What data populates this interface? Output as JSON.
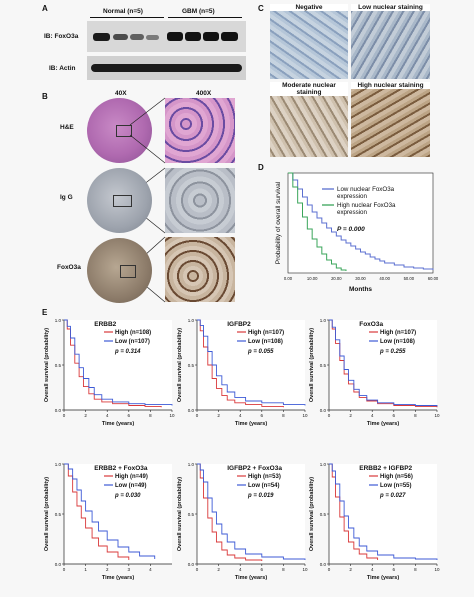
{
  "panels": {
    "a": "A",
    "b": "B",
    "c": "C",
    "d": "D",
    "e": "E"
  },
  "panel_a": {
    "group_normal": "Normal (n=5)",
    "group_gbm": "GBM (n=5)",
    "row1_label": "IB: FoxO3a",
    "row2_label": "IB: Actin"
  },
  "panel_b": {
    "col_40x": "40X",
    "col_400x": "400X",
    "rows": [
      "H&E",
      "Ig G",
      "FoxO3a"
    ]
  },
  "panel_c": {
    "tiles": [
      "Negative",
      "Low nuclear staining",
      "Moderate nuclear staining",
      "High nuclear staining"
    ]
  },
  "chart_data": [
    {
      "id": "D",
      "type": "line",
      "title": "",
      "xlabel": "Months",
      "ylabel": "Probability of overall survival",
      "xlim": [
        0,
        60
      ],
      "ylim": [
        0,
        1
      ],
      "xticks": [
        "0.00",
        "10.00",
        "20.00",
        "30.00",
        "40.00",
        "50.00",
        "60.00"
      ],
      "series": [
        {
          "name": "Low nuclear FoxO3a expression",
          "color": "#5b6fd0",
          "x": [
            0,
            2,
            4,
            6,
            8,
            10,
            12,
            14,
            16,
            18,
            20,
            22,
            24,
            26,
            28,
            30,
            32,
            34,
            36,
            38,
            40,
            44,
            48,
            52,
            56,
            60
          ],
          "y": [
            1,
            0.93,
            0.84,
            0.76,
            0.68,
            0.61,
            0.55,
            0.5,
            0.45,
            0.41,
            0.37,
            0.33,
            0.3,
            0.27,
            0.24,
            0.21,
            0.19,
            0.16,
            0.14,
            0.12,
            0.1,
            0.08,
            0.06,
            0.05,
            0.04,
            0.03
          ]
        },
        {
          "name": "High nuclear FoxO3a expression",
          "color": "#3aa55a",
          "x": [
            0,
            2,
            4,
            6,
            8,
            10,
            12,
            14,
            16,
            18,
            20,
            22,
            24
          ],
          "y": [
            1,
            0.86,
            0.7,
            0.56,
            0.44,
            0.34,
            0.26,
            0.19,
            0.13,
            0.09,
            0.05,
            0.03,
            0.02
          ]
        }
      ],
      "annotation": "P = 0.000"
    },
    {
      "id": "E1",
      "type": "line",
      "title": "ERBB2",
      "xlabel": "Time (years)",
      "ylabel": "Overall survival (probability)",
      "xlim": [
        0,
        10
      ],
      "ylim": [
        0,
        1
      ],
      "xticks": [
        "0",
        "2",
        "4",
        "6",
        "8",
        "10"
      ],
      "yticks": [
        "0.0",
        "0.5",
        "1.0"
      ],
      "series": [
        {
          "name": "High (n=108)",
          "color": "#d9383a",
          "x": [
            0,
            0.3,
            0.6,
            1,
            1.4,
            1.8,
            2.3,
            2.8,
            3.5,
            4.5,
            6,
            7.5,
            9
          ],
          "y": [
            1,
            0.9,
            0.72,
            0.52,
            0.37,
            0.26,
            0.18,
            0.12,
            0.09,
            0.07,
            0.05,
            0.04,
            0.03
          ]
        },
        {
          "name": "Low (n=107)",
          "color": "#3d5ad6",
          "x": [
            0,
            0.3,
            0.6,
            1,
            1.4,
            1.8,
            2.3,
            2.8,
            3.5,
            4.5,
            6,
            7.5,
            10
          ],
          "y": [
            1,
            0.93,
            0.8,
            0.62,
            0.47,
            0.35,
            0.25,
            0.17,
            0.12,
            0.09,
            0.07,
            0.06,
            0.05
          ]
        }
      ],
      "annotation": "p = 0.314"
    },
    {
      "id": "E2",
      "type": "line",
      "title": "IGFBP2",
      "xlabel": "Time (years)",
      "ylabel": "Overall survival (probability)",
      "xlim": [
        0,
        10
      ],
      "ylim": [
        0,
        1
      ],
      "xticks": [
        "0",
        "2",
        "4",
        "6",
        "8",
        "10"
      ],
      "yticks": [
        "0.0",
        "0.5",
        "1.0"
      ],
      "series": [
        {
          "name": "High (n=107)",
          "color": "#d9383a",
          "x": [
            0,
            0.3,
            0.6,
            1,
            1.4,
            1.8,
            2.3,
            2.8,
            3.5,
            4.5,
            6,
            8
          ],
          "y": [
            1,
            0.88,
            0.7,
            0.5,
            0.35,
            0.24,
            0.16,
            0.11,
            0.08,
            0.06,
            0.04,
            0.03
          ]
        },
        {
          "name": "Low (n=108)",
          "color": "#3d5ad6",
          "x": [
            0,
            0.3,
            0.6,
            1,
            1.4,
            1.8,
            2.3,
            2.8,
            3.5,
            4.5,
            6,
            8,
            10
          ],
          "y": [
            1,
            0.94,
            0.82,
            0.65,
            0.5,
            0.38,
            0.28,
            0.2,
            0.14,
            0.1,
            0.08,
            0.06,
            0.05
          ]
        }
      ],
      "annotation": "p = 0.055"
    },
    {
      "id": "E3",
      "type": "line",
      "title": "FoxO3a",
      "xlabel": "Time (years)",
      "ylabel": "Overall survival (probability)",
      "xlim": [
        0,
        10
      ],
      "ylim": [
        0,
        1
      ],
      "xticks": [
        "0",
        "2",
        "4",
        "6",
        "8",
        "10"
      ],
      "yticks": [
        "0.0",
        "0.5",
        "1.0"
      ],
      "series": [
        {
          "name": "High (n=107)",
          "color": "#d9383a",
          "x": [
            0,
            0.3,
            0.6,
            1,
            1.4,
            1.8,
            2.3,
            2.8,
            3.5,
            4.5,
            6,
            8,
            10
          ],
          "y": [
            1,
            0.9,
            0.74,
            0.55,
            0.4,
            0.29,
            0.2,
            0.14,
            0.1,
            0.07,
            0.05,
            0.04,
            0.03
          ]
        },
        {
          "name": "Low (n=108)",
          "color": "#3d5ad6",
          "x": [
            0,
            0.3,
            0.6,
            1,
            1.4,
            1.8,
            2.3,
            2.8,
            3.5,
            4.5,
            6,
            8,
            10
          ],
          "y": [
            1,
            0.92,
            0.78,
            0.6,
            0.45,
            0.33,
            0.23,
            0.16,
            0.11,
            0.08,
            0.06,
            0.05,
            0.04
          ]
        }
      ],
      "annotation": "p = 0.255"
    },
    {
      "id": "E4",
      "type": "line",
      "title": "ERBB2 + FoxO3a",
      "xlabel": "Time (years)",
      "ylabel": "Overall survival (probability)",
      "xlim": [
        0,
        5
      ],
      "ylim": [
        0,
        1
      ],
      "xticks": [
        "0",
        "1",
        "2",
        "3",
        "4"
      ],
      "yticks": [
        "0.0",
        "0.5",
        "1.0"
      ],
      "series": [
        {
          "name": "High (n=49)",
          "color": "#d9383a",
          "x": [
            0,
            0.2,
            0.4,
            0.6,
            0.8,
            1,
            1.3,
            1.6,
            2,
            2.5,
            3
          ],
          "y": [
            1,
            0.88,
            0.72,
            0.58,
            0.46,
            0.36,
            0.26,
            0.18,
            0.12,
            0.07,
            0.04
          ]
        },
        {
          "name": "Low (n=49)",
          "color": "#3d5ad6",
          "x": [
            0,
            0.2,
            0.4,
            0.6,
            0.8,
            1,
            1.3,
            1.6,
            2,
            2.5,
            3,
            3.5,
            4.2
          ],
          "y": [
            1,
            0.95,
            0.85,
            0.74,
            0.63,
            0.53,
            0.42,
            0.33,
            0.24,
            0.17,
            0.12,
            0.08,
            0.05
          ]
        }
      ],
      "annotation": "p = 0.030"
    },
    {
      "id": "E5",
      "type": "line",
      "title": "IGFBP2 + FoxO3a",
      "xlabel": "Time (years)",
      "ylabel": "Overall survival (probability)",
      "xlim": [
        0,
        10
      ],
      "ylim": [
        0,
        1
      ],
      "xticks": [
        "0",
        "2",
        "4",
        "6",
        "8",
        "10"
      ],
      "yticks": [
        "0.0",
        "0.5",
        "1.0"
      ],
      "series": [
        {
          "name": "High (n=53)",
          "color": "#d9383a",
          "x": [
            0,
            0.3,
            0.6,
            1,
            1.4,
            1.8,
            2.3,
            2.8,
            3.5,
            4.5,
            6
          ],
          "y": [
            1,
            0.86,
            0.66,
            0.46,
            0.32,
            0.22,
            0.14,
            0.09,
            0.06,
            0.04,
            0.03
          ]
        },
        {
          "name": "Low (n=54)",
          "color": "#3d5ad6",
          "x": [
            0,
            0.3,
            0.6,
            1,
            1.4,
            1.8,
            2.3,
            2.8,
            3.5,
            4.5,
            6,
            8,
            10
          ],
          "y": [
            1,
            0.94,
            0.82,
            0.66,
            0.52,
            0.4,
            0.3,
            0.22,
            0.15,
            0.1,
            0.07,
            0.05,
            0.04
          ]
        }
      ],
      "annotation": "p = 0.019"
    },
    {
      "id": "E6",
      "type": "line",
      "title": "ERBB2 + IGFBP2",
      "xlabel": "Time (years)",
      "ylabel": "Overall survival (probability)",
      "xlim": [
        0,
        10
      ],
      "ylim": [
        0,
        1
      ],
      "xticks": [
        "0",
        "2",
        "4",
        "6",
        "8",
        "10"
      ],
      "yticks": [
        "0.0",
        "0.5",
        "1.0"
      ],
      "series": [
        {
          "name": "High (n=56)",
          "color": "#d9383a",
          "x": [
            0,
            0.3,
            0.6,
            1,
            1.4,
            1.8,
            2.3,
            2.8,
            3.5,
            4.5
          ],
          "y": [
            1,
            0.87,
            0.67,
            0.47,
            0.33,
            0.22,
            0.15,
            0.1,
            0.06,
            0.04
          ]
        },
        {
          "name": "Low (n=55)",
          "color": "#3d5ad6",
          "x": [
            0,
            0.3,
            0.6,
            1,
            1.4,
            1.8,
            2.3,
            2.8,
            3.5,
            4.5,
            6,
            8,
            10
          ],
          "y": [
            1,
            0.93,
            0.8,
            0.63,
            0.48,
            0.36,
            0.26,
            0.18,
            0.13,
            0.09,
            0.06,
            0.05,
            0.04
          ]
        }
      ],
      "annotation": "p = 0.027"
    }
  ]
}
